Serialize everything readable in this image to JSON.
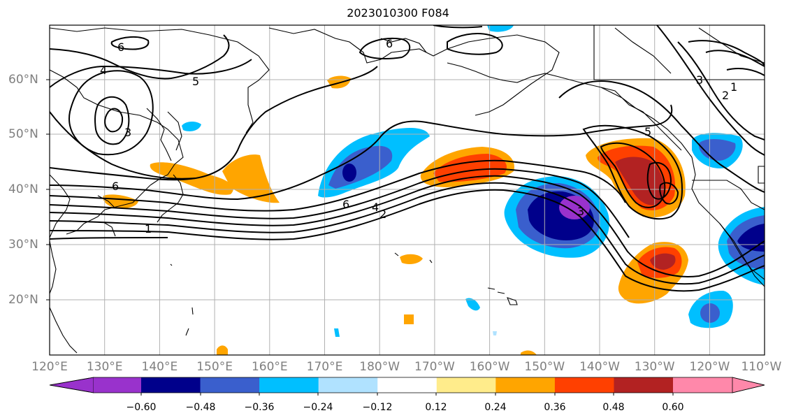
{
  "title": "2023010300 F084",
  "lat_labels": [
    "60°N",
    "50°N",
    "40°N",
    "30°N",
    "20°N"
  ],
  "lon_labels": [
    "120°E",
    "130°E",
    "140°E",
    "150°E",
    "160°E",
    "170°E",
    "180°W",
    "170°W",
    "160°W",
    "150°W",
    "140°W",
    "130°W",
    "120°W",
    "110°W"
  ],
  "colorbar": {
    "tick_labels": [
      "−0.60",
      "−0.48",
      "−0.36",
      "−0.24",
      "−0.12",
      "0.12",
      "0.24",
      "0.36",
      "0.48",
      "0.60"
    ],
    "colors": [
      "#9932cc",
      "#00008b",
      "#3a5fcd",
      "#00bfff",
      "#b0e2ff",
      "#ffffff",
      "#ffec8b",
      "#ffa500",
      "#ff4000",
      "#b22222",
      "#ff88aa"
    ]
  },
  "contour_labels": [
    "6",
    "4",
    "5",
    "3",
    "6",
    "1",
    "6",
    "4",
    "2",
    "5",
    "3",
    "1",
    "2",
    "3",
    "6"
  ],
  "chart_data": {
    "type": "heatmap",
    "title": "2023010300 F084",
    "x_ticks": [
      "120°E",
      "130°E",
      "140°E",
      "150°E",
      "160°E",
      "170°E",
      "180°W",
      "170°W",
      "160°W",
      "150°W",
      "140°W",
      "130°W",
      "120°W",
      "110°W"
    ],
    "y_ticks": [
      "60°N",
      "50°N",
      "40°N",
      "30°N",
      "20°N"
    ],
    "levels": [
      -0.6,
      -0.48,
      -0.36,
      -0.24,
      -0.12,
      0.12,
      0.24,
      0.36,
      0.48,
      0.6
    ]
  }
}
